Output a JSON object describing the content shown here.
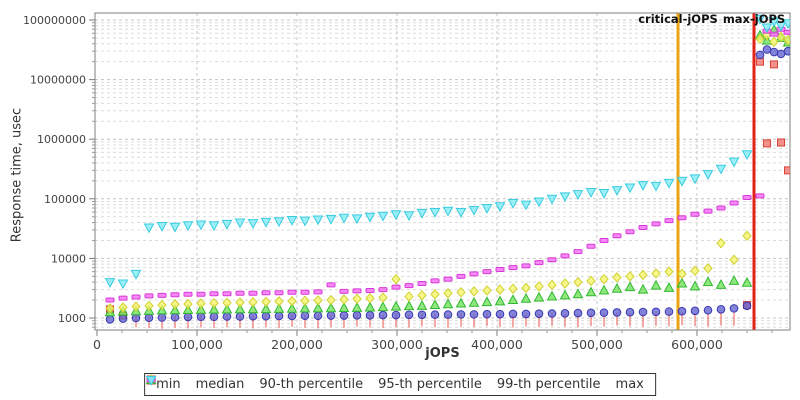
{
  "chart_data": {
    "type": "scatter",
    "title": "",
    "xlabel": "jOPS",
    "ylabel": "Response time, usec",
    "x_axis": {
      "min": 0,
      "max": 693000,
      "major_ticks": [
        0,
        100000,
        200000,
        300000,
        400000,
        500000,
        600000
      ],
      "tick_labels": [
        "0",
        "100,000",
        "200,000",
        "300,000",
        "400,000",
        "500,000",
        "600,000"
      ],
      "minor_tick_step": 25000,
      "grid": "dashed"
    },
    "y_axis": {
      "scale": "log",
      "min": 630,
      "max": 126000000,
      "major_ticks": [
        1000,
        10000,
        100000,
        1000000,
        10000000,
        100000000
      ],
      "tick_labels": [
        "1000",
        "10000",
        "100000",
        "1000000",
        "10000000",
        "100000000"
      ],
      "grid": "dashed"
    },
    "annotations": [
      {
        "label": "critical-jOPS",
        "x": 581000,
        "color": "#eaa410"
      },
      {
        "label": "max-jOPS",
        "x": 657000,
        "color": "#e32116"
      }
    ],
    "x": [
      13000,
      26000,
      39000,
      52000,
      65000,
      78000,
      91000,
      104000,
      117000,
      130000,
      143000,
      156000,
      169000,
      182000,
      195000,
      208000,
      221000,
      234000,
      247000,
      260000,
      273000,
      286000,
      299000,
      312000,
      325000,
      338000,
      351000,
      364000,
      377000,
      390000,
      403000,
      416000,
      429000,
      442000,
      455000,
      468000,
      481000,
      494000,
      507000,
      520000,
      533000,
      546000,
      559000,
      572000,
      585000,
      598000,
      611000,
      624000,
      637000,
      650000
    ],
    "saturation_x": [
      663000,
      670000,
      677000,
      684000,
      691000
    ],
    "series": [
      {
        "name": "min",
        "marker": "square",
        "low_marker": "vline",
        "fill": "#f0726a",
        "stroke": "#d84338",
        "values": [
          1400,
          1100,
          900,
          870,
          850,
          880,
          860,
          890,
          870,
          900,
          880,
          860,
          900,
          870,
          910,
          880,
          860,
          900,
          880,
          920,
          890,
          870,
          910,
          890,
          930,
          900,
          880,
          920,
          900,
          940,
          910,
          890,
          930,
          910,
          950,
          920,
          900,
          940,
          920,
          960,
          930,
          910,
          950,
          930,
          970,
          940,
          920,
          960,
          950,
          1650
        ],
        "saturation_values": [
          20000000,
          850000,
          18000000,
          880000,
          300000
        ]
      },
      {
        "name": "median",
        "marker": "circle",
        "fill": "#6060d0",
        "stroke": "#3838b0",
        "values": [
          950,
          980,
          1000,
          1010,
          1020,
          1030,
          1040,
          1050,
          1050,
          1060,
          1060,
          1070,
          1070,
          1080,
          1080,
          1090,
          1090,
          1100,
          1100,
          1110,
          1110,
          1120,
          1120,
          1130,
          1130,
          1140,
          1140,
          1150,
          1150,
          1160,
          1160,
          1170,
          1170,
          1180,
          1190,
          1200,
          1210,
          1220,
          1230,
          1240,
          1250,
          1260,
          1270,
          1280,
          1300,
          1320,
          1350,
          1400,
          1450,
          1600
        ],
        "saturation_values": [
          26000000,
          32000000,
          29000000,
          27000000,
          30000000
        ]
      },
      {
        "name": "90-th percentile",
        "marker": "triangle-up",
        "fill": "#70e058",
        "stroke": "#30b830",
        "values": [
          1250,
          1280,
          1300,
          1320,
          1340,
          1350,
          1360,
          1370,
          1380,
          1390,
          1400,
          1400,
          1410,
          1420,
          1430,
          1440,
          1450,
          1460,
          1470,
          1480,
          1500,
          1520,
          1550,
          1580,
          1600,
          1650,
          1700,
          1750,
          1800,
          1850,
          1900,
          2000,
          2100,
          2200,
          2300,
          2400,
          2500,
          2700,
          2900,
          3100,
          3300,
          3000,
          3500,
          3200,
          3800,
          3400,
          4000,
          3600,
          4200,
          3900
        ],
        "saturation_values": [
          55000000,
          45000000,
          68000000,
          50000000,
          42000000
        ]
      },
      {
        "name": "95-th percentile",
        "marker": "diamond",
        "fill": "#f4f468",
        "stroke": "#d0d030",
        "values": [
          1450,
          1500,
          1550,
          1600,
          1650,
          1700,
          1720,
          1750,
          1780,
          1800,
          1820,
          1850,
          1870,
          1900,
          1920,
          1950,
          1980,
          2000,
          2050,
          2100,
          2150,
          2200,
          4500,
          2300,
          2400,
          2500,
          2600,
          2700,
          2800,
          2900,
          3000,
          3100,
          3200,
          3400,
          3600,
          3800,
          4000,
          4200,
          4500,
          4800,
          5000,
          5300,
          5600,
          6000,
          5500,
          6200,
          6800,
          18000,
          9500,
          24000
        ],
        "saturation_values": [
          48000000,
          56000000,
          43000000,
          52000000,
          46000000
        ]
      },
      {
        "name": "99-th percentile",
        "marker": "hbar",
        "fill": "#f468f4",
        "stroke": "#d838d8",
        "values": [
          2000,
          2150,
          2250,
          2350,
          2400,
          2450,
          2500,
          2500,
          2550,
          2550,
          2600,
          2600,
          2650,
          2650,
          2700,
          2700,
          2750,
          3600,
          2800,
          2850,
          2900,
          3000,
          3300,
          3500,
          3800,
          4200,
          4500,
          5000,
          5500,
          6000,
          6500,
          7000,
          7500,
          8500,
          9500,
          11000,
          13000,
          16000,
          20000,
          24000,
          28000,
          33000,
          38000,
          43000,
          48000,
          55000,
          62000,
          70000,
          85000,
          105000
        ],
        "saturation_values": [
          112000,
          65000000,
          58000000,
          70000000,
          62000000
        ]
      },
      {
        "name": "max",
        "marker": "triangle-down",
        "fill": "#80eaf4",
        "stroke": "#38cce0",
        "values": [
          4000,
          3800,
          5500,
          33000,
          35000,
          34000,
          36000,
          37000,
          36000,
          38000,
          40000,
          39000,
          41000,
          42000,
          44000,
          43000,
          45000,
          46000,
          48000,
          47000,
          50000,
          52000,
          55000,
          53000,
          58000,
          60000,
          63000,
          60000,
          65000,
          70000,
          75000,
          85000,
          80000,
          90000,
          100000,
          110000,
          120000,
          130000,
          125000,
          140000,
          155000,
          170000,
          165000,
          185000,
          200000,
          220000,
          260000,
          320000,
          420000,
          560000
        ],
        "saturation_values": [
          105000000,
          75000000,
          95000000,
          80000000,
          88000000
        ]
      }
    ]
  },
  "legend": {
    "items": [
      {
        "label": "min",
        "marker": "square",
        "fill": "#f0726a",
        "stroke": "#d84338"
      },
      {
        "label": "median",
        "marker": "circle",
        "fill": "#6060d0",
        "stroke": "#3838b0"
      },
      {
        "label": "90-th percentile",
        "marker": "triangle-up",
        "fill": "#70e058",
        "stroke": "#30b830"
      },
      {
        "label": "95-th percentile",
        "marker": "diamond",
        "fill": "#f4f468",
        "stroke": "#d0d030"
      },
      {
        "label": "99-th percentile",
        "marker": "hbar",
        "fill": "#f468f4",
        "stroke": "#d838d8"
      },
      {
        "label": "max",
        "marker": "triangle-down",
        "fill": "#80eaf4",
        "stroke": "#38cce0"
      }
    ]
  }
}
